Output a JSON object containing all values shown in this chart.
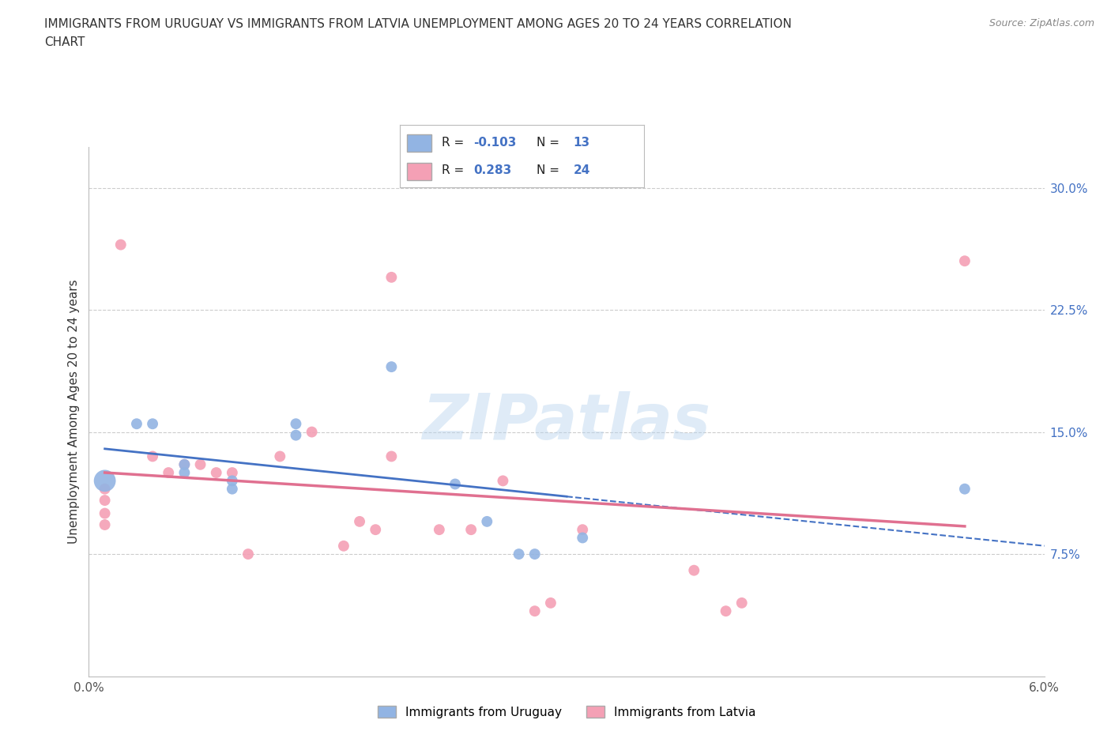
{
  "title_line1": "IMMIGRANTS FROM URUGUAY VS IMMIGRANTS FROM LATVIA UNEMPLOYMENT AMONG AGES 20 TO 24 YEARS CORRELATION",
  "title_line2": "CHART",
  "source": "Source: ZipAtlas.com",
  "ylabel": "Unemployment Among Ages 20 to 24 years",
  "xlim": [
    0.0,
    0.06
  ],
  "ylim": [
    0.0,
    0.325
  ],
  "xticks": [
    0.0,
    0.01,
    0.02,
    0.03,
    0.04,
    0.05,
    0.06
  ],
  "xticklabels": [
    "0.0%",
    "",
    "",
    "",
    "",
    "",
    "6.0%"
  ],
  "ytick_positions": [
    0.075,
    0.15,
    0.225,
    0.3
  ],
  "ytick_labels": [
    "7.5%",
    "15.0%",
    "22.5%",
    "30.0%"
  ],
  "watermark": "ZIPatlas",
  "uruguay_color": "#92b4e3",
  "latvia_color": "#f4a0b5",
  "uruguay_line_color": "#4472c4",
  "latvia_line_color": "#e07090",
  "uruguay_scatter": [
    [
      0.001,
      0.12
    ],
    [
      0.003,
      0.155
    ],
    [
      0.004,
      0.155
    ],
    [
      0.006,
      0.13
    ],
    [
      0.006,
      0.125
    ],
    [
      0.009,
      0.12
    ],
    [
      0.009,
      0.115
    ],
    [
      0.013,
      0.155
    ],
    [
      0.013,
      0.148
    ],
    [
      0.019,
      0.19
    ],
    [
      0.023,
      0.118
    ],
    [
      0.025,
      0.095
    ],
    [
      0.027,
      0.075
    ],
    [
      0.028,
      0.075
    ],
    [
      0.031,
      0.085
    ],
    [
      0.055,
      0.115
    ]
  ],
  "latvia_scatter": [
    [
      0.001,
      0.115
    ],
    [
      0.001,
      0.108
    ],
    [
      0.001,
      0.1
    ],
    [
      0.001,
      0.093
    ],
    [
      0.002,
      0.265
    ],
    [
      0.004,
      0.135
    ],
    [
      0.005,
      0.125
    ],
    [
      0.006,
      0.13
    ],
    [
      0.007,
      0.13
    ],
    [
      0.008,
      0.125
    ],
    [
      0.009,
      0.125
    ],
    [
      0.01,
      0.075
    ],
    [
      0.012,
      0.135
    ],
    [
      0.014,
      0.15
    ],
    [
      0.016,
      0.08
    ],
    [
      0.017,
      0.095
    ],
    [
      0.018,
      0.09
    ],
    [
      0.019,
      0.135
    ],
    [
      0.019,
      0.245
    ],
    [
      0.022,
      0.09
    ],
    [
      0.024,
      0.09
    ],
    [
      0.026,
      0.12
    ],
    [
      0.028,
      0.04
    ],
    [
      0.029,
      0.045
    ],
    [
      0.031,
      0.09
    ],
    [
      0.038,
      0.065
    ],
    [
      0.04,
      0.04
    ],
    [
      0.041,
      0.045
    ],
    [
      0.055,
      0.255
    ]
  ],
  "uruguay_big_point_idx": 0,
  "grid_color": "#cccccc",
  "background_color": "#ffffff"
}
